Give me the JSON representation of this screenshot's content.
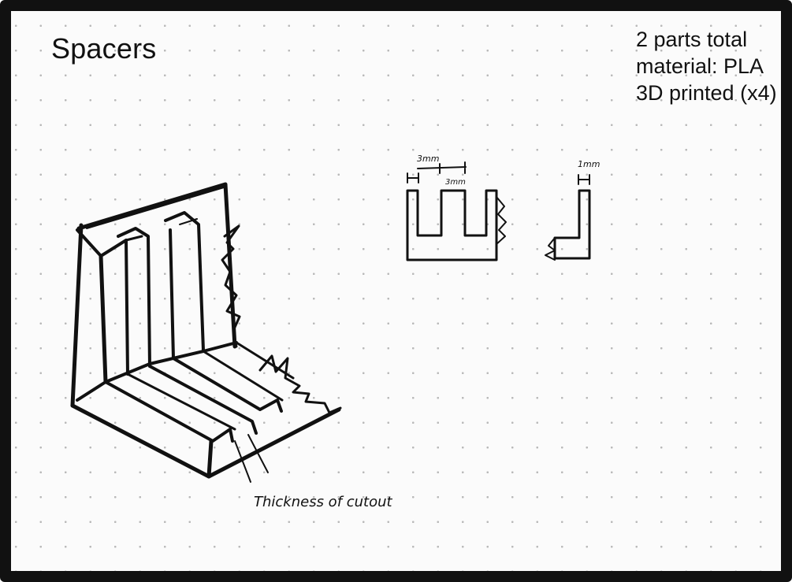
{
  "title": "Spacers",
  "notes": [
    "2 parts total",
    "material: PLA",
    "3D printed (x4)"
  ],
  "dimensions": {
    "slot_width": "3mm",
    "tooth_width": "3mm",
    "wall_thickness": "1mm"
  },
  "annotation": "Thickness of cutout"
}
